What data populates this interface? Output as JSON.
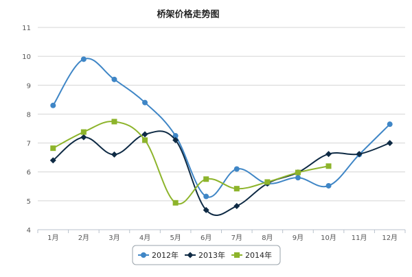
{
  "chart_data": {
    "type": "line",
    "title": "桥架价格走势图",
    "categories": [
      "1月",
      "2月",
      "3月",
      "4月",
      "5月",
      "6月",
      "7月",
      "8月",
      "9月",
      "10月",
      "11月",
      "12月"
    ],
    "ylim": [
      4,
      11
    ],
    "y_ticks": [
      "4",
      "5",
      "6",
      "7",
      "8",
      "9",
      "10",
      "11"
    ],
    "grid": "horizontal",
    "legend_position": "bottom-center",
    "series": [
      {
        "name": "2012年",
        "color": "#3f86c6",
        "marker": "circle",
        "values": [
          8.3,
          9.9,
          9.2,
          8.4,
          7.25,
          5.15,
          6.1,
          5.6,
          5.8,
          5.52,
          6.6,
          7.65
        ]
      },
      {
        "name": "2013年",
        "color": "#0e2a44",
        "marker": "diamond",
        "values": [
          6.4,
          7.2,
          6.6,
          7.3,
          7.1,
          4.68,
          4.82,
          5.6,
          5.98,
          6.62,
          6.62,
          7.0
        ]
      },
      {
        "name": "2014年",
        "color": "#8db42b",
        "marker": "square",
        "values": [
          6.82,
          7.38,
          7.74,
          7.1,
          4.93,
          5.75,
          5.42,
          5.65,
          5.98,
          6.2,
          null,
          null
        ]
      }
    ]
  }
}
